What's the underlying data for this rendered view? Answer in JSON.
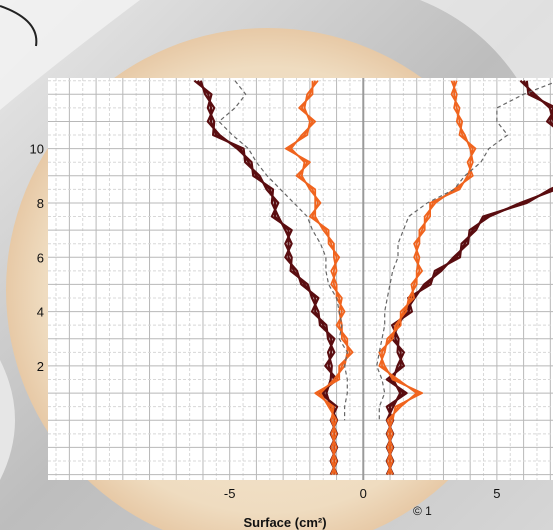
{
  "chart_data": {
    "type": "line",
    "title": "",
    "xlabel": "Surface (cm²)",
    "ylabel": "",
    "xlim": [
      -11.8,
      7.1
    ],
    "ylim": [
      -2.2,
      12.6
    ],
    "x_ticks": [
      -5,
      0,
      5
    ],
    "y_ticks": [
      2,
      4,
      6,
      8,
      10
    ],
    "grid": true,
    "copyright": "© 1",
    "colors": {
      "dark": "#5a0d10",
      "orange": "#f0641e",
      "dashed": "#666666"
    },
    "series": [
      {
        "group": "dark",
        "side": "left",
        "points": [
          [
            -6.2,
            12.5
          ],
          [
            -5.8,
            12
          ],
          [
            -5.7,
            11.5
          ],
          [
            -5.7,
            11
          ],
          [
            -5.5,
            10.5
          ],
          [
            -4.6,
            10
          ],
          [
            -4.3,
            9.5
          ],
          [
            -4,
            9
          ],
          [
            -3.5,
            8.5
          ],
          [
            -3.3,
            8
          ],
          [
            -3.3,
            7.5
          ],
          [
            -2.8,
            7
          ],
          [
            -2.8,
            6.5
          ],
          [
            -2.8,
            6
          ],
          [
            -2.6,
            5.5
          ],
          [
            -2.2,
            5
          ],
          [
            -1.8,
            4.5
          ],
          [
            -1.8,
            4
          ],
          [
            -1.5,
            3.5
          ],
          [
            -1.2,
            3
          ],
          [
            -1.2,
            2.5
          ],
          [
            -1.3,
            2
          ],
          [
            -1.1,
            1.5
          ],
          [
            -1.5,
            1
          ],
          [
            -1.1,
            0.5
          ],
          [
            -1.1,
            0
          ],
          [
            -1.1,
            -0.5
          ],
          [
            -1.1,
            -1
          ],
          [
            -1.1,
            -1.5
          ],
          [
            -1.1,
            -2
          ]
        ]
      },
      {
        "group": "dark",
        "side": "right",
        "points": [
          [
            6.0,
            12.5
          ],
          [
            6.3,
            12
          ],
          [
            7.1,
            11.5
          ],
          [
            7.0,
            11
          ],
          [
            7.4,
            10.5
          ],
          [
            7.8,
            10
          ],
          [
            8.2,
            9.5
          ],
          [
            8.0,
            9
          ],
          [
            7.1,
            8.5
          ],
          [
            6.0,
            8
          ],
          [
            4.6,
            7.5
          ],
          [
            4.1,
            7
          ],
          [
            3.8,
            6.5
          ],
          [
            3.5,
            6
          ],
          [
            2.8,
            5.5
          ],
          [
            2.4,
            5
          ],
          [
            1.8,
            4.5
          ],
          [
            1.7,
            4
          ],
          [
            1.2,
            3.5
          ],
          [
            1.2,
            3
          ],
          [
            1.4,
            2.5
          ],
          [
            1.4,
            2
          ],
          [
            1.0,
            1.5
          ],
          [
            1.5,
            1
          ],
          [
            1.0,
            0.5
          ],
          [
            1.0,
            0
          ],
          [
            1.0,
            -0.5
          ],
          [
            1.0,
            -1
          ],
          [
            1.0,
            -1.5
          ],
          [
            1.0,
            -2
          ]
        ]
      },
      {
        "group": "orange",
        "side": "left",
        "points": [
          [
            -1.8,
            12.5
          ],
          [
            -2.0,
            12
          ],
          [
            -2.3,
            11.5
          ],
          [
            -1.9,
            11
          ],
          [
            -2.2,
            10.5
          ],
          [
            -2.8,
            10
          ],
          [
            -2.1,
            9.5
          ],
          [
            -2.4,
            9
          ],
          [
            -1.9,
            8.5
          ],
          [
            -1.7,
            8
          ],
          [
            -1.9,
            7.5
          ],
          [
            -1.4,
            7
          ],
          [
            -1.2,
            6.5
          ],
          [
            -1.0,
            6
          ],
          [
            -1.1,
            5.5
          ],
          [
            -1.1,
            5
          ],
          [
            -0.9,
            4.5
          ],
          [
            -0.8,
            4
          ],
          [
            -0.9,
            3.5
          ],
          [
            -0.7,
            3
          ],
          [
            -0.5,
            2.5
          ],
          [
            -0.8,
            2
          ],
          [
            -1.0,
            1.5
          ],
          [
            -1.7,
            1
          ],
          [
            -1.2,
            0.5
          ],
          [
            -1.1,
            0
          ],
          [
            -1.1,
            -0.5
          ],
          [
            -1.1,
            -1
          ],
          [
            -1.1,
            -1.5
          ],
          [
            -1.1,
            -2
          ]
        ]
      },
      {
        "group": "orange",
        "side": "right",
        "points": [
          [
            3.4,
            12.5
          ],
          [
            3.4,
            12
          ],
          [
            3.5,
            11.5
          ],
          [
            3.6,
            11
          ],
          [
            3.7,
            10.5
          ],
          [
            4.1,
            10
          ],
          [
            4.0,
            9.5
          ],
          [
            4.0,
            9
          ],
          [
            3.5,
            8.5
          ],
          [
            2.6,
            8
          ],
          [
            2.4,
            7.5
          ],
          [
            2.2,
            7
          ],
          [
            2.0,
            6.5
          ],
          [
            2.0,
            6
          ],
          [
            2.1,
            5.5
          ],
          [
            1.9,
            5
          ],
          [
            1.8,
            4.5
          ],
          [
            1.5,
            4
          ],
          [
            1.3,
            3.5
          ],
          [
            1.0,
            3
          ],
          [
            0.7,
            2.5
          ],
          [
            0.7,
            2
          ],
          [
            1.2,
            1.5
          ],
          [
            2.1,
            1
          ],
          [
            1.3,
            0.5
          ],
          [
            1.0,
            0
          ],
          [
            1.0,
            -0.5
          ],
          [
            1.0,
            -1
          ],
          [
            1.0,
            -1.5
          ],
          [
            1.0,
            -2
          ]
        ]
      },
      {
        "group": "dashed",
        "side": "left",
        "points": [
          [
            -4.8,
            12.5
          ],
          [
            -4.4,
            12
          ],
          [
            -4.8,
            11.5
          ],
          [
            -5.4,
            11
          ],
          [
            -4.9,
            10.5
          ],
          [
            -4.3,
            10
          ],
          [
            -4.0,
            9.5
          ],
          [
            -3.6,
            9
          ],
          [
            -3.1,
            8.5
          ],
          [
            -2.6,
            8
          ],
          [
            -2.1,
            7.5
          ],
          [
            -1.9,
            7
          ],
          [
            -1.6,
            6.5
          ],
          [
            -1.4,
            6
          ],
          [
            -1.4,
            5.5
          ],
          [
            -1.3,
            5
          ],
          [
            -1.0,
            4.5
          ],
          [
            -0.9,
            4
          ],
          [
            -0.8,
            3.5
          ],
          [
            -0.9,
            3
          ],
          [
            -0.6,
            2.5
          ],
          [
            -0.7,
            2
          ],
          [
            -0.6,
            1.5
          ],
          [
            -0.6,
            1
          ],
          [
            -0.7,
            0.5
          ],
          [
            -0.7,
            0
          ]
        ]
      },
      {
        "group": "dashed",
        "side": "right",
        "points": [
          [
            7.3,
            12.5
          ],
          [
            6.0,
            12
          ],
          [
            5.0,
            11.5
          ],
          [
            5.0,
            11
          ],
          [
            5.4,
            10.5
          ],
          [
            4.7,
            10
          ],
          [
            4.4,
            9.5
          ],
          [
            3.8,
            9
          ],
          [
            3.4,
            8.5
          ],
          [
            2.4,
            8
          ],
          [
            1.7,
            7.5
          ],
          [
            1.5,
            7
          ],
          [
            1.3,
            6.5
          ],
          [
            1.3,
            6
          ],
          [
            1.1,
            5.5
          ],
          [
            1.0,
            5
          ],
          [
            0.9,
            4.5
          ],
          [
            0.8,
            4
          ],
          [
            0.8,
            3.5
          ],
          [
            0.7,
            3
          ],
          [
            0.6,
            2.5
          ],
          [
            0.5,
            2
          ],
          [
            0.7,
            1.5
          ],
          [
            0.8,
            1
          ],
          [
            0.6,
            0.5
          ],
          [
            0.6,
            0
          ]
        ]
      }
    ]
  }
}
